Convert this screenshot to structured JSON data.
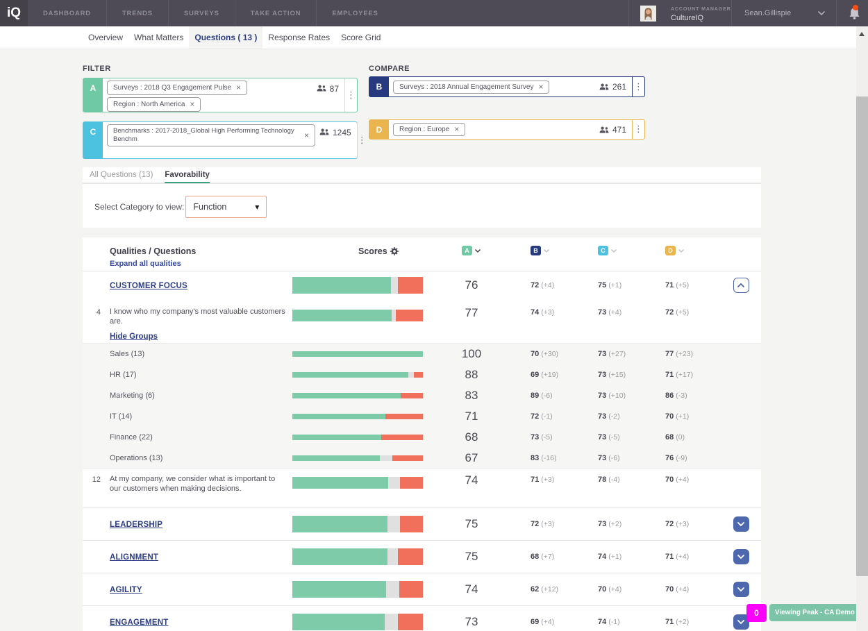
{
  "topnav": {
    "logo": "iQ",
    "items": [
      "DASHBOARD",
      "TRENDS",
      "SURVEYS",
      "TAKE ACTION",
      "EMPLOYEES"
    ],
    "account_role": "ACCOUNT MANAGER",
    "account_org": "CultureIQ",
    "user_name": "Sean.Gillispie"
  },
  "page_tabs": {
    "items": [
      "Overview",
      "What Matters",
      "Questions ( 13 )",
      "Response Rates",
      "Score Grid"
    ],
    "active": "Questions ( 13 )"
  },
  "filter": {
    "label": "FILTER",
    "box_a": {
      "letter": "A",
      "color": "#6fc9a4",
      "chips": [
        "Surveys : 2018 Q3 Engagement Pulse",
        "Region : North America"
      ],
      "count": "87"
    },
    "box_c": {
      "letter": "C",
      "color": "#4cc1e0",
      "chip": "Benchmarks : 2017-2018_Global High Performing Technology Benchm",
      "count": "1245"
    }
  },
  "compare": {
    "label": "COMPARE",
    "box_b": {
      "letter": "B",
      "color": "#273a7f",
      "chip": "Surveys : 2018 Annual Engagement Survey",
      "count": "261"
    },
    "box_d": {
      "letter": "D",
      "color": "#eab54e",
      "chip": "Region : Europe",
      "count": "471"
    }
  },
  "subtabs": {
    "items": [
      "All Questions (13)",
      "Favorability"
    ],
    "active": "Favorability"
  },
  "category": {
    "label": "Select Category to view:",
    "value": "Function"
  },
  "table": {
    "col_questions": "Qualities / Questions",
    "expand_link": "Expand all qualities",
    "col_scores": "Scores",
    "columns": [
      "A",
      "B",
      "C",
      "D"
    ],
    "column_colors": [
      "#6fc9a4",
      "#273a7f",
      "#4cc1e0",
      "#eab54e"
    ],
    "rows": [
      {
        "type": "quality",
        "label": "CUSTOMER FOCUS",
        "expanded": true,
        "bar": {
          "fav": 75.5,
          "neu": 5.5,
          "unf": 19
        },
        "score": "76",
        "b": {
          "v": "72",
          "d": "(+4)"
        },
        "c": {
          "v": "75",
          "d": "(+1)"
        },
        "d": {
          "v": "71",
          "d": "(+5)"
        }
      },
      {
        "type": "question",
        "num": "4",
        "text": "I know who my company's most valuable customers are.",
        "link": "Hide Groups",
        "bar": {
          "fav": 76,
          "neu": 3.5,
          "unf": 20.5
        },
        "score": "77",
        "b": {
          "v": "74",
          "d": "(+3)"
        },
        "c": {
          "v": "73",
          "d": "(+4)"
        },
        "d": {
          "v": "72",
          "d": "(+5)"
        }
      },
      {
        "type": "group_section",
        "groups": [
          {
            "label": "Sales (13)",
            "bar": {
              "fav": 100,
              "neu": 0,
              "unf": 0
            },
            "score": "100",
            "b": {
              "v": "70",
              "d": "(+30)"
            },
            "c": {
              "v": "73",
              "d": "(+27)"
            },
            "d": {
              "v": "77",
              "d": "(+23)"
            }
          },
          {
            "label": "HR (17)",
            "bar": {
              "fav": 89,
              "neu": 4,
              "unf": 7
            },
            "score": "88",
            "b": {
              "v": "69",
              "d": "(+19)"
            },
            "c": {
              "v": "73",
              "d": "(+15)"
            },
            "d": {
              "v": "71",
              "d": "(+17)"
            }
          },
          {
            "label": "Marketing (6)",
            "bar": {
              "fav": 83,
              "neu": 0,
              "unf": 17
            },
            "score": "83",
            "b": {
              "v": "89",
              "d": "(-6)"
            },
            "c": {
              "v": "73",
              "d": "(+10)"
            },
            "d": {
              "v": "86",
              "d": "(-3)"
            }
          },
          {
            "label": "IT (14)",
            "bar": {
              "fav": 71.5,
              "neu": 0,
              "unf": 28.5
            },
            "score": "71",
            "b": {
              "v": "72",
              "d": "(-1)"
            },
            "c": {
              "v": "73",
              "d": "(-2)"
            },
            "d": {
              "v": "70",
              "d": "(+1)"
            }
          },
          {
            "label": "Finance (22)",
            "bar": {
              "fav": 68,
              "neu": 0,
              "unf": 32
            },
            "score": "68",
            "b": {
              "v": "73",
              "d": "(-5)"
            },
            "c": {
              "v": "73",
              "d": "(-5)"
            },
            "d": {
              "v": "68",
              "d": "(0)"
            }
          },
          {
            "label": "Operations (13)",
            "bar": {
              "fav": 67,
              "neu": 9.5,
              "unf": 23.5
            },
            "score": "67",
            "b": {
              "v": "83",
              "d": "(-16)"
            },
            "c": {
              "v": "73",
              "d": "(-6)"
            },
            "d": {
              "v": "76",
              "d": "(-9)"
            }
          }
        ]
      },
      {
        "type": "question",
        "num": "12",
        "text": "At my company, we consider what is important to our customers when making decisions.",
        "link": null,
        "bordered": true,
        "bar": {
          "fav": 73.5,
          "neu": 9,
          "unf": 17.5
        },
        "score": "74",
        "b": {
          "v": "71",
          "d": "(+3)"
        },
        "c": {
          "v": "78",
          "d": "(-4)"
        },
        "d": {
          "v": "70",
          "d": "(+4)"
        }
      },
      {
        "type": "quality",
        "label": "LEADERSHIP",
        "expanded": false,
        "bar": {
          "fav": 73,
          "neu": 9.5,
          "unf": 17.5
        },
        "score": "75",
        "b": {
          "v": "72",
          "d": "(+3)"
        },
        "c": {
          "v": "73",
          "d": "(+2)"
        },
        "d": {
          "v": "72",
          "d": "(+3)"
        }
      },
      {
        "type": "quality",
        "label": "ALIGNMENT",
        "expanded": false,
        "bar": {
          "fav": 73,
          "neu": 8,
          "unf": 19
        },
        "score": "75",
        "b": {
          "v": "68",
          "d": "(+7)"
        },
        "c": {
          "v": "74",
          "d": "(+1)"
        },
        "d": {
          "v": "71",
          "d": "(+4)"
        }
      },
      {
        "type": "quality",
        "label": "AGILITY",
        "expanded": false,
        "bar": {
          "fav": 72,
          "neu": 10,
          "unf": 18
        },
        "score": "74",
        "b": {
          "v": "62",
          "d": "(+12)"
        },
        "c": {
          "v": "70",
          "d": "(+4)"
        },
        "d": {
          "v": "70",
          "d": "(+4)"
        }
      },
      {
        "type": "quality",
        "label": "ENGAGEMENT",
        "expanded": false,
        "bar": {
          "fav": 71,
          "neu": 10,
          "unf": 19
        },
        "score": "73",
        "b": {
          "v": "69",
          "d": "(+4)"
        },
        "c": {
          "v": "74",
          "d": "(-1)"
        },
        "d": {
          "v": "71",
          "d": "(+2)"
        }
      }
    ]
  },
  "footer": {
    "badge": "0",
    "pill": "Viewing Peak - CA Demo"
  },
  "icons": {
    "remove": "×",
    "dropdown": "▼",
    "dots": "⋮"
  },
  "bar_colors": {
    "favorable": "#7ecbaa",
    "neutral": "#e0e0e0",
    "unfavorable": "#f1705b"
  }
}
